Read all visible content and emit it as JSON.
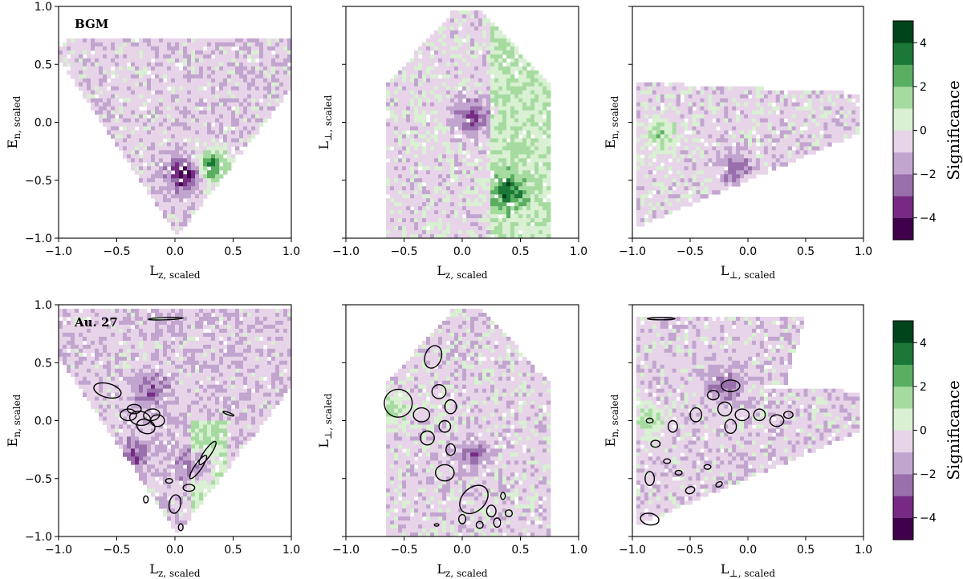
{
  "colors": {
    "scale": [
      "#40004b",
      "#762a83",
      "#9970ab",
      "#c2a5cf",
      "#e7d4e8",
      "#d9f0d3",
      "#a6dba0",
      "#5aae61",
      "#1b7837",
      "#00441b"
    ],
    "ellipse": "#000000"
  },
  "chart_data": [
    {
      "type": "heatmap",
      "panel": "BGM",
      "title": "BGM",
      "xlabel": "Lz, scaled",
      "ylabel": "En, scaled",
      "xlim": [
        -1,
        1
      ],
      "ylim": [
        -1,
        1
      ],
      "xticks": [
        "−1.0",
        "−0.5",
        "0.0",
        "0.5",
        "1.0"
      ],
      "yticks": [
        "−1.0",
        "−0.5",
        "0.0",
        "0.5",
        "1.0"
      ],
      "features": [
        {
          "x": 0.08,
          "y": -0.45,
          "value": -4
        },
        {
          "x": 0.32,
          "y": -0.38,
          "value": 4
        }
      ]
    },
    {
      "type": "heatmap",
      "panel": "BGM",
      "xlabel": "Lz, scaled",
      "ylabel": "L⊥, scaled",
      "xlim": [
        -1,
        1
      ],
      "xticks": [
        "−1.0",
        "−0.5",
        "0.0",
        "0.5",
        "1.0"
      ],
      "features": [
        {
          "x": 0.08,
          "y": 0.05,
          "value": -3
        },
        {
          "x": 0.4,
          "y": -0.6,
          "value": 3
        }
      ]
    },
    {
      "type": "heatmap",
      "panel": "BGM",
      "xlabel": "L⊥, scaled",
      "ylabel": "En, scaled",
      "xlim": [
        -1,
        1
      ],
      "xticks": [
        "−1.0",
        "−0.5",
        "0.0",
        "0.5",
        "1.0"
      ],
      "features": [
        {
          "x": -0.75,
          "y": -0.1,
          "value": 2
        },
        {
          "x": -0.1,
          "y": -0.4,
          "value": -2
        }
      ]
    },
    {
      "type": "heatmap",
      "panel": "Au. 27",
      "title": "Au. 27",
      "xlabel": "Lz, scaled",
      "ylabel": "En, scaled",
      "xlim": [
        -1,
        1
      ],
      "ylim": [
        -1,
        1
      ],
      "xticks": [
        "−1.0",
        "−0.5",
        "0.0",
        "0.5",
        "1.0"
      ],
      "yticks": [
        "−1.0",
        "−0.5",
        "0.0",
        "0.5",
        "1.0"
      ],
      "features": [
        {
          "x": -0.35,
          "y": -0.3,
          "value": -2
        },
        {
          "x": 0.2,
          "y": -0.4,
          "value": -3
        },
        {
          "x": -0.2,
          "y": 0.25,
          "value": -2
        }
      ]
    },
    {
      "type": "heatmap",
      "panel": "Au. 27",
      "xlabel": "Lz, scaled",
      "ylabel": "L⊥, scaled",
      "xlim": [
        -1,
        1
      ],
      "xticks": [
        "−1.0",
        "−0.5",
        "0.0",
        "0.5",
        "1.0"
      ],
      "features": [
        {
          "x": -0.6,
          "y": 0.1,
          "value": 2
        },
        {
          "x": 0.1,
          "y": -0.3,
          "value": -2
        }
      ]
    },
    {
      "type": "heatmap",
      "panel": "Au. 27",
      "xlabel": "L⊥, scaled",
      "ylabel": "En, scaled",
      "xlim": [
        -1,
        1
      ],
      "xticks": [
        "−1.0",
        "−0.5",
        "0.0",
        "0.5",
        "1.0"
      ],
      "features": [
        {
          "x": -0.2,
          "y": 0.3,
          "value": -2
        },
        {
          "x": -0.85,
          "y": 0.0,
          "value": 2
        }
      ]
    }
  ],
  "colorbar": {
    "label": "Significance",
    "ticks": [
      "4",
      "2",
      "0",
      "−2",
      "−4"
    ],
    "range": [
      -5,
      5
    ]
  }
}
